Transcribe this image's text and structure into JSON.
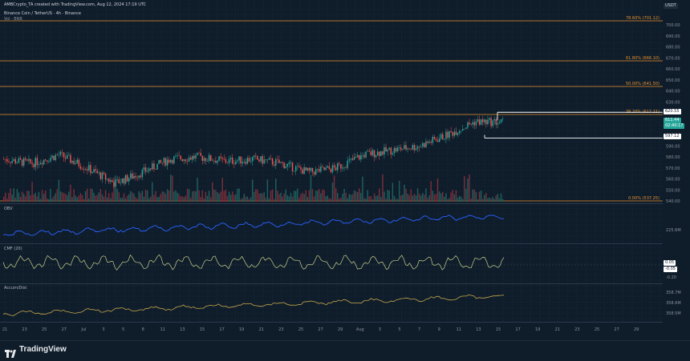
{
  "header": {
    "attribution": "AMBCrypto_TA created with TradingView.com, Aug 12, 2024 17:19 UTC",
    "symbol_line": "Binance Coin / TetherUS · 4h · Binance",
    "vol_label": "Vol · BNB",
    "currency": "USDT"
  },
  "indicators": {
    "obv_label": "OBV",
    "cmf_label": "CMF (20)",
    "ad_label": "Accum/Dist"
  },
  "price_axis": {
    "ticks": [
      "700.00",
      "690.00",
      "680.00",
      "670.00",
      "660.00",
      "650.00",
      "640.00",
      "630.00",
      "620.00",
      "610.00",
      "600.00",
      "590.00",
      "580.00",
      "570.00",
      "560.00",
      "550.00",
      "540.00"
    ]
  },
  "fib_levels": [
    {
      "label": "78.60% (701.12)",
      "value": 701.12,
      "color": "#e8912d"
    },
    {
      "label": "61.80% (666.10)",
      "value": 666.1,
      "color": "#e8912d"
    },
    {
      "label": "50.00% (641.50)",
      "value": 641.5,
      "color": "#e8912d"
    },
    {
      "label": "38.20% (617.21)",
      "value": 617.21,
      "color": "#e8912d"
    },
    {
      "label": "0.00% (537.25)",
      "value": 537.25,
      "color": "#e8912d"
    }
  ],
  "price_tags": {
    "resistance": "620.55",
    "current": "611.44",
    "countdown": "02:40:17",
    "support": "597.12"
  },
  "obv_axis": {
    "ticks": [
      "225.6M"
    ]
  },
  "cmf_axis": {
    "ticks": [
      "0.05",
      "-0.05",
      "-0.20"
    ]
  },
  "ad_axis": {
    "ticks": [
      "358.7M",
      "358.6M",
      "358.5M"
    ]
  },
  "time_axis": {
    "ticks": [
      "21",
      "23",
      "25",
      "27",
      "Jul",
      "3",
      "5",
      "8",
      "11",
      "13",
      "15",
      "17",
      "19",
      "21",
      "23",
      "25",
      "27",
      "29",
      "Aug",
      "3",
      "5",
      "7",
      "9",
      "11",
      "13",
      "15",
      "17",
      "19",
      "21",
      "23",
      "25",
      "27",
      "29"
    ]
  },
  "footer": {
    "brand": "TradingView"
  },
  "colors": {
    "background": "#0f1d2b",
    "up": "#26a69a",
    "down": "#ef5350",
    "fib": "#e8912d",
    "obv": "#2962ff",
    "cmf": "#c8d08a",
    "ad": "#c8a84a"
  },
  "chart_data": {
    "type": "candlestick",
    "title": "Binance Coin / TetherUS · 4h · Binance",
    "ylim": [
      535,
      705
    ],
    "x_range": [
      "2024-06-21",
      "2024-08-12"
    ],
    "approx_close_path": [
      [
        "2024-06-21",
        578
      ],
      [
        "2024-06-24",
        574
      ],
      [
        "2024-06-27",
        582
      ],
      [
        "2024-07-01",
        570
      ],
      [
        "2024-07-05",
        556
      ],
      [
        "2024-07-08",
        566
      ],
      [
        "2024-07-11",
        578
      ],
      [
        "2024-07-13",
        580
      ],
      [
        "2024-07-16",
        576
      ],
      [
        "2024-07-19",
        578
      ],
      [
        "2024-07-22",
        574
      ],
      [
        "2024-07-25",
        566
      ],
      [
        "2024-07-28",
        570
      ],
      [
        "2024-08-01",
        582
      ],
      [
        "2024-08-03",
        586
      ],
      [
        "2024-08-06",
        590
      ],
      [
        "2024-08-09",
        600
      ],
      [
        "2024-08-11",
        612
      ],
      [
        "2024-08-12",
        611.44
      ]
    ],
    "horizontal_levels": {
      "resistance": 620.55,
      "support": 597.12
    },
    "legend": "none",
    "grid": true
  }
}
